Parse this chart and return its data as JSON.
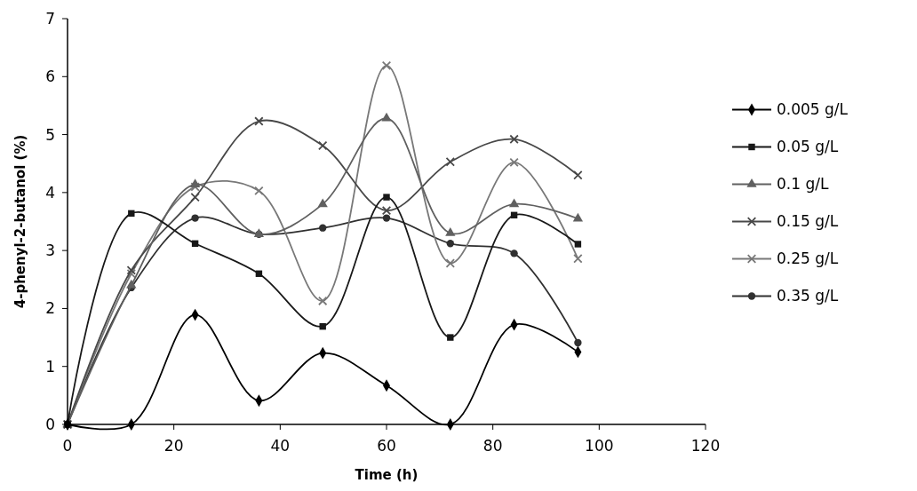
{
  "chart_data": {
    "type": "line",
    "xlabel": "Time (h)",
    "ylabel": "4-phenyl-2-butanol (%)",
    "x": [
      0,
      12,
      24,
      36,
      48,
      60,
      72,
      84,
      96
    ],
    "xlim": [
      0,
      120
    ],
    "xticks": [
      0,
      20,
      40,
      60,
      80,
      100,
      120
    ],
    "ylim": [
      0,
      7
    ],
    "yticks": [
      0,
      1,
      2,
      3,
      4,
      5,
      6,
      7
    ],
    "grid": false,
    "legend": "right",
    "line_style": "solid",
    "series": [
      {
        "name": "0.005 g/L",
        "color": "#000000",
        "marker": "diamond",
        "values": [
          0,
          0,
          1.89,
          0.41,
          1.23,
          0.67,
          0,
          1.72,
          1.25
        ]
      },
      {
        "name": "0.05 g/L",
        "color": "#181818",
        "marker": "square",
        "values": [
          0,
          3.64,
          3.12,
          2.6,
          1.69,
          3.92,
          1.5,
          3.61,
          3.11
        ]
      },
      {
        "name": "0.1 g/L",
        "color": "#606060",
        "marker": "triangle",
        "values": [
          0,
          2.4,
          4.14,
          3.28,
          3.8,
          5.28,
          3.3,
          3.8,
          3.55
        ]
      },
      {
        "name": "0.15 g/L",
        "color": "#484848",
        "marker": "cross",
        "values": [
          0,
          2.66,
          3.92,
          5.23,
          4.81,
          3.69,
          4.53,
          4.92,
          4.3
        ]
      },
      {
        "name": "0.25 g/L",
        "color": "#787878",
        "marker": "cross",
        "values": [
          0,
          2.6,
          4.1,
          4.03,
          2.13,
          6.19,
          2.78,
          4.52,
          2.86
        ]
      },
      {
        "name": "0.35 g/L",
        "color": "#303030",
        "marker": "circle",
        "values": [
          0,
          2.36,
          3.56,
          3.28,
          3.39,
          3.56,
          3.12,
          2.95,
          1.41
        ]
      }
    ]
  }
}
